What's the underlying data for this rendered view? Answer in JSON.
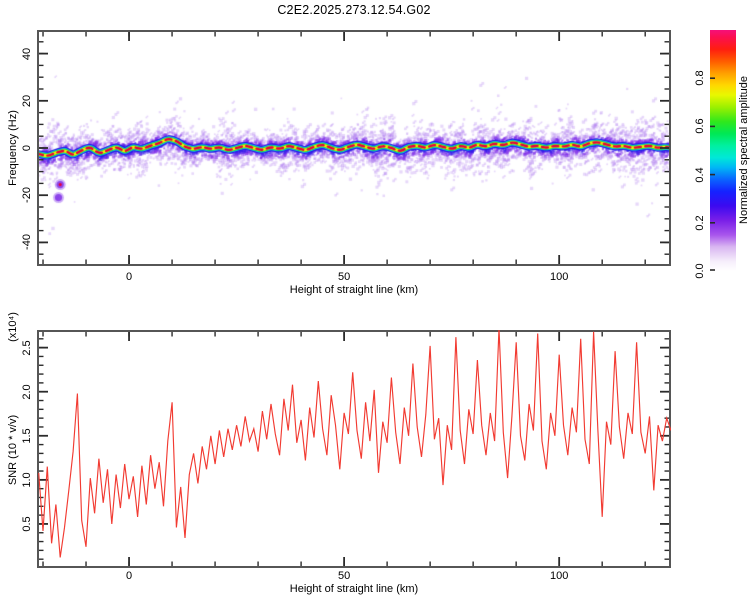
{
  "title": "C2E2.2025.273.12.54.G02",
  "chart_data": [
    {
      "type": "heatmap",
      "title": "C2E2.2025.273.12.54.G02",
      "xlabel": "Height of straight line (km)",
      "ylabel": "Frequency (Hz)",
      "xlim": [
        -21.4,
        126
      ],
      "ylim": [
        -50,
        50
      ],
      "grid": false,
      "x_major_ticks": [
        {
          "v": 0,
          "label": "0"
        },
        {
          "v": 50,
          "label": "50"
        },
        {
          "v": 100,
          "label": "100"
        }
      ],
      "x_minor_step": 10,
      "y_major_ticks": [
        {
          "v": 40,
          "label": "40"
        },
        {
          "v": 20,
          "label": "20"
        },
        {
          "v": 0,
          "label": "0"
        },
        {
          "v": -20,
          "label": "-20"
        },
        {
          "v": -40,
          "label": "-40"
        }
      ],
      "y_minor_step": 5,
      "colorbar": {
        "label": "Normalized spectral amplitude",
        "range": [
          0,
          1
        ],
        "ticks": [
          {
            "v": 0,
            "label": "0.0"
          },
          {
            "v": 0.2,
            "label": "0.2"
          },
          {
            "v": 0.4,
            "label": "0.4"
          },
          {
            "v": 0.6,
            "label": "0.6"
          },
          {
            "v": 0.8,
            "label": "0.8"
          }
        ],
        "gradient": [
          [
            0.0,
            "#ffffff"
          ],
          [
            0.04,
            "#f6eefb"
          ],
          [
            0.1,
            "#d9b6f1"
          ],
          [
            0.15,
            "#a855ec"
          ],
          [
            0.21,
            "#7a1fe8"
          ],
          [
            0.27,
            "#3c0af0"
          ],
          [
            0.33,
            "#1522ff"
          ],
          [
            0.38,
            "#0a64ff"
          ],
          [
            0.43,
            "#00b8f5"
          ],
          [
            0.47,
            "#00e8d8"
          ],
          [
            0.52,
            "#00f0a0"
          ],
          [
            0.57,
            "#00e855"
          ],
          [
            0.62,
            "#30e81c"
          ],
          [
            0.68,
            "#9cf000"
          ],
          [
            0.73,
            "#e8f800"
          ],
          [
            0.77,
            "#ffd800"
          ],
          [
            0.82,
            "#ffa000"
          ],
          [
            0.87,
            "#ff5c00"
          ],
          [
            0.92,
            "#ff1e10"
          ],
          [
            0.97,
            "#fb0f50"
          ],
          [
            1.0,
            "#f5107a"
          ]
        ]
      },
      "band": {
        "description": "narrow spectral ridge centered near 0 Hz with purple noise halo",
        "centerline_x_km": [
          -21,
          -19,
          -17,
          -15,
          -13,
          -11,
          -9,
          -7,
          -5,
          -3,
          -1,
          1,
          3,
          5,
          7,
          9,
          11,
          13,
          15,
          17,
          19,
          21,
          23,
          25,
          27,
          29,
          31,
          33,
          35,
          37,
          39,
          41,
          43,
          45,
          47,
          49,
          51,
          53,
          55,
          57,
          59,
          61,
          63,
          65,
          67,
          69,
          71,
          73,
          75,
          77,
          79,
          81,
          83,
          85,
          87,
          89,
          91,
          93,
          95,
          97,
          99,
          101,
          103,
          105,
          107,
          109,
          111,
          113,
          115,
          117,
          119,
          121,
          123,
          125,
          126
        ],
        "centerline_hz": [
          -2.5,
          -3.5,
          -2,
          -1,
          -3,
          -1,
          0.5,
          -2.5,
          -1,
          0.5,
          -1.5,
          0.5,
          -0.5,
          1,
          2,
          4,
          3,
          0.5,
          -0.5,
          0.5,
          -0.5,
          0.5,
          -1,
          0,
          1,
          0,
          -1,
          0.5,
          -0.5,
          1,
          0,
          -1,
          0.5,
          1.5,
          0,
          -1,
          0.5,
          1.5,
          0.5,
          -0.5,
          1,
          0,
          -1.5,
          0.5,
          1,
          0,
          1.5,
          0.5,
          -0.5,
          1,
          0,
          1.5,
          0.5,
          2,
          1,
          2.5,
          1.5,
          0.5,
          1,
          0,
          1,
          0.5,
          1.5,
          0.5,
          2,
          2.5,
          1.5,
          0.5,
          1,
          0,
          0.5,
          1,
          0,
          0.5,
          0
        ],
        "layers": [
          {
            "name": "noise-speckle",
            "color": "#8a2be2",
            "halfwidth_hz": 3.6
          },
          {
            "name": "blue",
            "color": "#2d12e8",
            "halfwidth_hz": 1.7
          },
          {
            "name": "cyan",
            "color": "#00ccf2",
            "halfwidth_hz": 1.2
          },
          {
            "name": "green",
            "color": "#0ae03c",
            "halfwidth_hz": 0.9
          },
          {
            "name": "yellow",
            "color": "#f2f200",
            "halfwidth_hz": 0.63
          },
          {
            "name": "red-core",
            "color": "#e6003c",
            "halfwidth_hz": 0.5,
            "dashed": true
          }
        ],
        "speckle_count": 5200,
        "noise_seed": 273125,
        "outliers": [
          {
            "x_km": -16,
            "hz": -15.5,
            "peak": 0.95
          },
          {
            "x_km": -16.4,
            "hz": -21,
            "peak": 0.25
          }
        ]
      }
    },
    {
      "type": "line",
      "xlabel": "Height of straight line (km)",
      "ylabel": "SNR (10 * v/v)",
      "ylabel_scale": "(x10⁴)",
      "color": "#f23b32",
      "xlim": [
        -21.4,
        126
      ],
      "ylim": [
        0,
        2.7
      ],
      "grid": false,
      "x_major_ticks": [
        {
          "v": 0,
          "label": "0"
        },
        {
          "v": 50,
          "label": "50"
        },
        {
          "v": 100,
          "label": "100"
        }
      ],
      "x_minor_step": 10,
      "y_major_ticks": [
        {
          "v": 0.5,
          "label": "0.5"
        },
        {
          "v": 1.0,
          "label": "1.0"
        },
        {
          "v": 1.5,
          "label": "1.5"
        },
        {
          "v": 2.0,
          "label": "2.0"
        },
        {
          "v": 2.5,
          "label": "2.5"
        }
      ],
      "y_minor_step": 0.1,
      "x_start": -21,
      "x_step": 1,
      "values": [
        1.08,
        0.42,
        1.15,
        0.28,
        0.72,
        0.12,
        0.46,
        0.88,
        1.32,
        1.98,
        0.54,
        0.24,
        1.02,
        0.62,
        1.24,
        0.74,
        1.12,
        0.5,
        1.06,
        0.68,
        1.18,
        0.78,
        1.04,
        0.58,
        1.16,
        0.72,
        1.28,
        0.9,
        1.2,
        0.7,
        1.44,
        1.88,
        0.46,
        0.92,
        0.34,
        1.06,
        1.3,
        0.96,
        1.38,
        1.12,
        1.5,
        1.18,
        1.56,
        1.26,
        1.58,
        1.34,
        1.62,
        1.38,
        1.72,
        1.44,
        1.58,
        1.32,
        1.78,
        1.46,
        1.86,
        1.52,
        1.28,
        1.92,
        1.56,
        2.08,
        1.42,
        1.68,
        1.22,
        1.82,
        1.48,
        2.12,
        1.58,
        1.28,
        1.96,
        1.62,
        1.12,
        1.76,
        1.52,
        2.22,
        1.56,
        1.24,
        1.88,
        1.44,
        2.02,
        1.08,
        1.66,
        1.42,
        2.16,
        1.54,
        1.18,
        1.82,
        1.5,
        2.32,
        1.6,
        1.26,
        1.74,
        2.52,
        1.46,
        1.7,
        0.94,
        1.62,
        1.34,
        2.62,
        1.56,
        1.18,
        1.8,
        1.52,
        2.36,
        1.62,
        1.28,
        1.76,
        1.44,
        2.72,
        1.54,
        1.02,
        1.72,
        2.56,
        1.5,
        1.22,
        1.86,
        1.56,
        2.66,
        1.44,
        1.12,
        1.76,
        1.5,
        2.42,
        1.62,
        1.28,
        1.82,
        1.54,
        2.6,
        1.46,
        1.18,
        2.68,
        1.56,
        0.58,
        1.66,
        1.4,
        2.46,
        1.6,
        1.24,
        1.76,
        1.52,
        2.56,
        1.54,
        1.3,
        1.72,
        0.88,
        1.62,
        1.44,
        1.7,
        1.56
      ]
    }
  ]
}
